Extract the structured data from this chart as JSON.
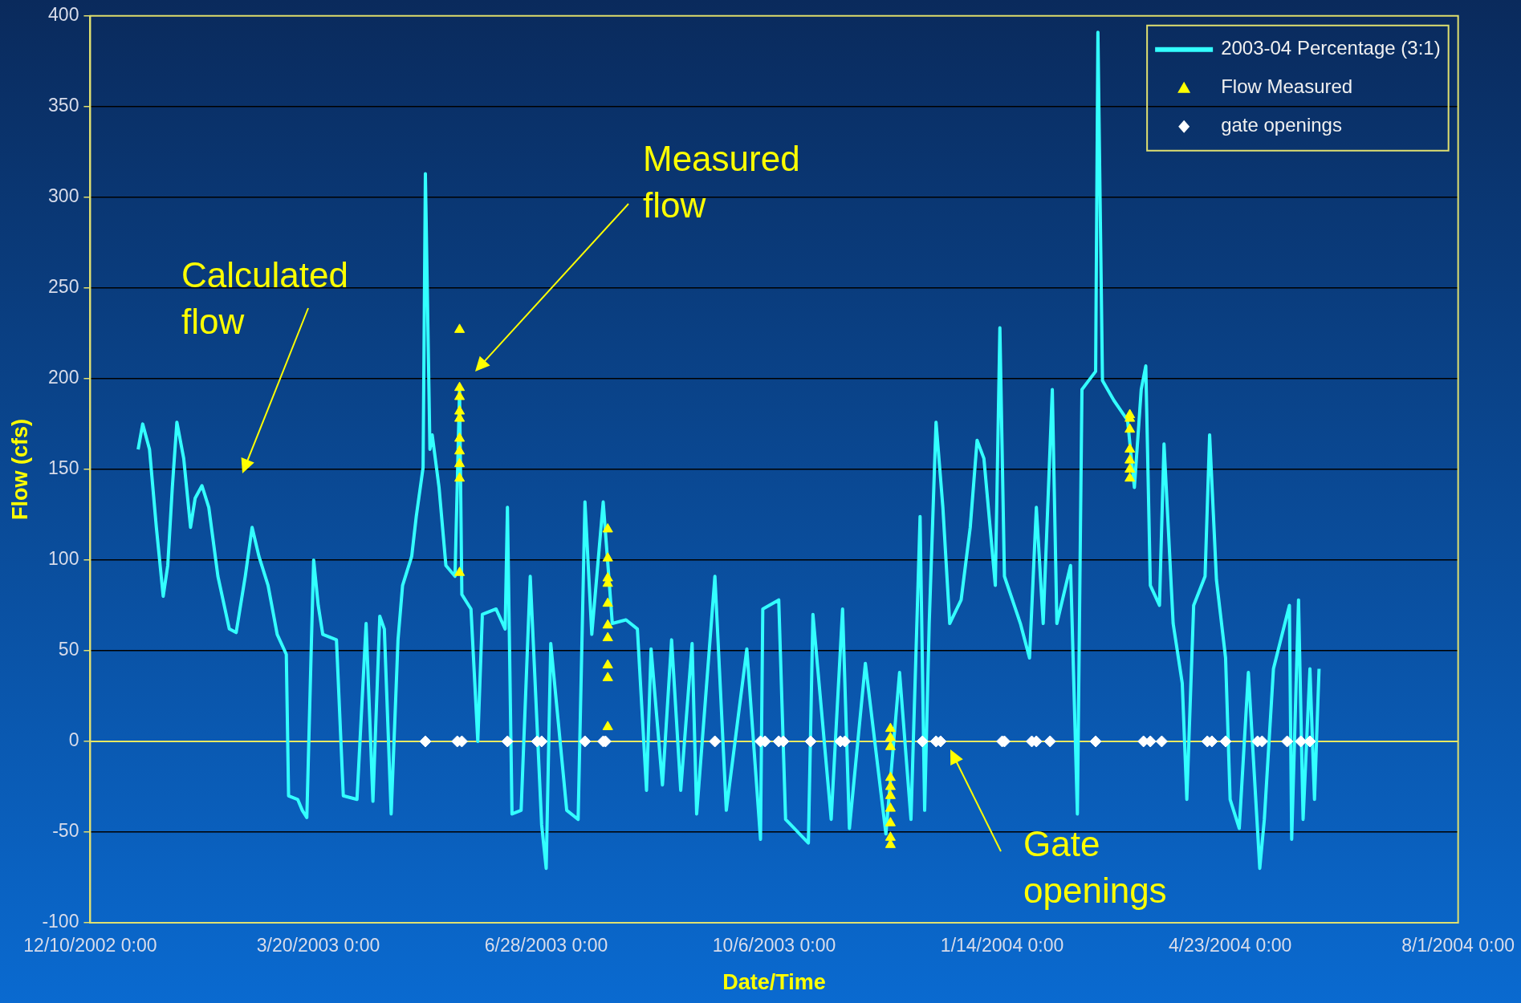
{
  "chart_data": {
    "type": "line",
    "xlabel": "Date/Time",
    "ylabel": "Flow (cfs)",
    "xlim": [
      "2002-12-10",
      "2004-08-01"
    ],
    "xticks": [
      {
        "value": "2002-12-10",
        "label": "12/10/2002 0:00"
      },
      {
        "value": "2003-03-20",
        "label": "3/20/2003 0:00"
      },
      {
        "value": "2003-06-28",
        "label": "6/28/2003 0:00"
      },
      {
        "value": "2003-10-06",
        "label": "10/6/2003 0:00"
      },
      {
        "value": "2004-01-14",
        "label": "1/14/2004 0:00"
      },
      {
        "value": "2004-04-23",
        "label": "4/23/2004 0:00"
      },
      {
        "value": "2004-08-01",
        "label": "8/1/2004 0:00"
      }
    ],
    "ylim": [
      -100,
      400
    ],
    "yticks": [
      -100,
      -50,
      0,
      50,
      100,
      150,
      200,
      250,
      300,
      350,
      400
    ],
    "grid": "y",
    "legend": "top right",
    "ref_lines": [
      {
        "axis": "y",
        "value": 0,
        "color": "#e8e860"
      }
    ],
    "annotations": [
      "Calculated flow",
      "Measured flow",
      "Gate openings"
    ],
    "series": [
      {
        "name": "2003-04 Percentage (3:1)",
        "type": "line",
        "marker": "none",
        "color": "#33ffff",
        "x": [
          "2002-12-31",
          "2003-01-02",
          "2003-01-05",
          "2003-01-08",
          "2003-01-11",
          "2003-01-13",
          "2003-01-15",
          "2003-01-17",
          "2003-01-20",
          "2003-01-23",
          "2003-01-25",
          "2003-01-28",
          "2003-01-31",
          "2003-02-04",
          "2003-02-09",
          "2003-02-12",
          "2003-02-16",
          "2003-02-19",
          "2003-02-22",
          "2003-02-26",
          "2003-03-02",
          "2003-03-06",
          "2003-03-07",
          "2003-03-11",
          "2003-03-13",
          "2003-03-15",
          "2003-03-17",
          "2003-03-18",
          "2003-03-20",
          "2003-03-22",
          "2003-03-28",
          "2003-03-31",
          "2003-04-06",
          "2003-04-10",
          "2003-04-13",
          "2003-04-16",
          "2003-04-18",
          "2003-04-21",
          "2003-04-24",
          "2003-04-26",
          "2003-04-30",
          "2003-05-02",
          "2003-05-05",
          "2003-05-06",
          "2003-05-08",
          "2003-05-09",
          "2003-05-12",
          "2003-05-15",
          "2003-05-19",
          "2003-05-21",
          "2003-05-22",
          "2003-05-26",
          "2003-05-29",
          "2003-05-31",
          "2003-06-06",
          "2003-06-10",
          "2003-06-11",
          "2003-06-13",
          "2003-06-17",
          "2003-06-21",
          "2003-06-26",
          "2003-06-28",
          "2003-06-30",
          "2003-07-07",
          "2003-07-12",
          "2003-07-15",
          "2003-07-18",
          "2003-07-23",
          "2003-07-27",
          "2003-08-02",
          "2003-08-07",
          "2003-08-11",
          "2003-08-13",
          "2003-08-18",
          "2003-08-22",
          "2003-08-26",
          "2003-08-31",
          "2003-09-02",
          "2003-09-10",
          "2003-09-15",
          "2003-09-24",
          "2003-09-30",
          "2003-10-01",
          "2003-10-08",
          "2003-10-11",
          "2003-10-21",
          "2003-10-23",
          "2003-10-31",
          "2003-11-05",
          "2003-11-08",
          "2003-11-15",
          "2003-11-24",
          "2003-11-30",
          "2003-12-05",
          "2003-12-09",
          "2003-12-11",
          "2003-12-13",
          "2003-12-16",
          "2003-12-19",
          "2003-12-22",
          "2003-12-27",
          "2003-12-31",
          "2004-01-03",
          "2004-01-06",
          "2004-01-11",
          "2004-01-13",
          "2004-01-15",
          "2004-01-22",
          "2004-01-26",
          "2004-01-29",
          "2004-02-01",
          "2004-02-05",
          "2004-02-07",
          "2004-02-13",
          "2004-02-16",
          "2004-02-18",
          "2004-02-21",
          "2004-02-24",
          "2004-02-25",
          "2004-02-27",
          "2004-03-03",
          "2004-03-09",
          "2004-03-12",
          "2004-03-15",
          "2004-03-17",
          "2004-03-19",
          "2004-03-23",
          "2004-03-25",
          "2004-03-29",
          "2004-04-02",
          "2004-04-04",
          "2004-04-07",
          "2004-04-12",
          "2004-04-14",
          "2004-04-17",
          "2004-04-21",
          "2004-04-23",
          "2004-04-27",
          "2004-05-01",
          "2004-05-06",
          "2004-05-08",
          "2004-05-12",
          "2004-05-19",
          "2004-05-20",
          "2004-05-23",
          "2004-05-25",
          "2004-05-28",
          "2004-05-30",
          "2004-06-01"
        ],
        "values": [
          161,
          175,
          161,
          118,
          80,
          97,
          140,
          176,
          156,
          118,
          134,
          141,
          129,
          91,
          62,
          60,
          91,
          118,
          102,
          86,
          59,
          48,
          -30,
          -32,
          -38,
          -42,
          54,
          100,
          75,
          59,
          56,
          -30,
          -32,
          65,
          -33,
          69,
          62,
          -40,
          56,
          86,
          102,
          124,
          151,
          313,
          161,
          169,
          140,
          97,
          91,
          194,
          81,
          73,
          0,
          70,
          73,
          62,
          129,
          -40,
          -38,
          91,
          -46,
          -70,
          54,
          -38,
          -43,
          132,
          59,
          132,
          65,
          67,
          62,
          -27,
          51,
          -24,
          56,
          -27,
          54,
          -40,
          91,
          -38,
          51,
          -54,
          73,
          78,
          -43,
          -56,
          70,
          -43,
          73,
          -48,
          43,
          -51,
          38,
          -43,
          124,
          -38,
          65,
          176,
          129,
          65,
          78,
          118,
          166,
          156,
          86,
          228,
          91,
          65,
          46,
          129,
          65,
          194,
          65,
          97,
          -40,
          194,
          199,
          204,
          391,
          199,
          188,
          177,
          140,
          194,
          207,
          86,
          75,
          164,
          65,
          32,
          -32,
          75,
          91,
          169,
          89,
          46,
          -32,
          -48,
          38,
          -70,
          -43,
          40,
          75,
          -54,
          78,
          -43,
          40,
          -32,
          40
        ]
      },
      {
        "name": "Flow Measured",
        "type": "scatter",
        "marker": "triangle",
        "color": "#ffff00",
        "x": [
          "2003-05-21",
          "2003-05-21",
          "2003-05-21",
          "2003-05-21",
          "2003-05-21",
          "2003-05-21",
          "2003-05-21",
          "2003-05-21",
          "2003-05-21",
          "2003-05-21",
          "2003-07-25",
          "2003-07-25",
          "2003-07-25",
          "2003-07-25",
          "2003-07-25",
          "2003-07-25",
          "2003-07-25",
          "2003-07-25",
          "2003-07-25",
          "2003-07-25",
          "2003-11-26",
          "2003-11-26",
          "2003-11-26",
          "2003-11-26",
          "2003-11-26",
          "2003-11-26",
          "2003-11-26",
          "2003-11-26",
          "2003-11-26",
          "2003-11-26",
          "2004-03-10",
          "2004-03-10",
          "2004-03-10",
          "2004-03-10",
          "2004-03-10",
          "2004-03-10",
          "2004-03-10"
        ],
        "values": [
          227,
          195,
          190,
          182,
          178,
          167,
          160,
          153,
          145,
          93,
          117,
          101,
          90,
          87,
          76,
          64,
          57,
          42,
          35,
          8,
          7,
          2,
          -3,
          -20,
          -25,
          -30,
          -37,
          -45,
          -53,
          -57,
          180,
          178,
          172,
          161,
          155,
          150,
          145
        ]
      },
      {
        "name": "gate openings",
        "type": "scatter",
        "marker": "diamond",
        "color": "#ffffff",
        "x": [
          "2003-05-06",
          "2003-05-20",
          "2003-05-22",
          "2003-06-11",
          "2003-06-24",
          "2003-06-26",
          "2003-07-15",
          "2003-07-23",
          "2003-07-24",
          "2003-09-10",
          "2003-09-30",
          "2003-10-02",
          "2003-10-08",
          "2003-10-10",
          "2003-10-22",
          "2003-11-04",
          "2003-11-06",
          "2003-12-10",
          "2003-12-16",
          "2003-12-18",
          "2004-01-14",
          "2004-01-15",
          "2004-01-27",
          "2004-01-29",
          "2004-02-04",
          "2004-02-24",
          "2004-03-16",
          "2004-03-19",
          "2004-03-24",
          "2004-04-13",
          "2004-04-15",
          "2004-04-21",
          "2004-05-05",
          "2004-05-07",
          "2004-05-18",
          "2004-05-24",
          "2004-05-28"
        ],
        "values": [
          0,
          0,
          0,
          0,
          0,
          0,
          0,
          0,
          0,
          0,
          0,
          0,
          0,
          0,
          0,
          0,
          0,
          0,
          0,
          0,
          0,
          0,
          0,
          0,
          0,
          0,
          0,
          0,
          0,
          0,
          0,
          0,
          0,
          0,
          0,
          0,
          0
        ]
      }
    ]
  }
}
